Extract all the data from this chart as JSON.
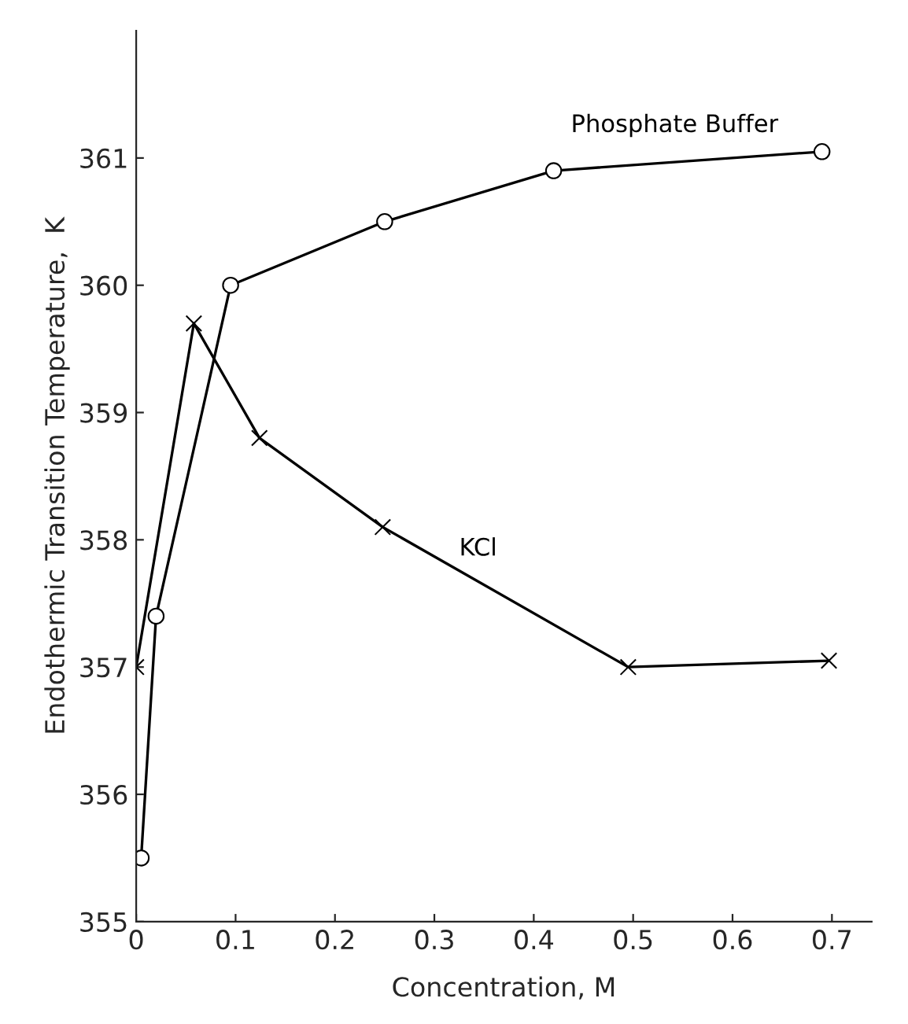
{
  "chart_data": {
    "type": "line",
    "xlabel": "Concentration, M",
    "ylabel": "Endothermic Transition Temperature,  K",
    "xlim": [
      0,
      0.74
    ],
    "ylim": [
      355,
      362
    ],
    "xticks": [
      0,
      0.1,
      0.2,
      0.3,
      0.4,
      0.5,
      0.6,
      0.7
    ],
    "yticks": [
      355,
      356,
      357,
      358,
      359,
      360,
      361
    ],
    "grid": false,
    "legend": false,
    "line_style": "solid",
    "series": [
      {
        "name": "Phosphate Buffer",
        "color": "#000000",
        "marker": "circle",
        "x": [
          0.005,
          0.02,
          0.095,
          0.25,
          0.42,
          0.69
        ],
        "values": [
          355.5,
          357.4,
          360.0,
          360.5,
          360.9,
          361.05
        ]
      },
      {
        "name": "KCl",
        "color": "#000000",
        "marker": "cross",
        "x": [
          0,
          0.058,
          0.124,
          0.248,
          0.495,
          0.697
        ],
        "values": [
          357.0,
          359.7,
          358.8,
          358.1,
          357.0,
          357.05
        ]
      }
    ]
  }
}
